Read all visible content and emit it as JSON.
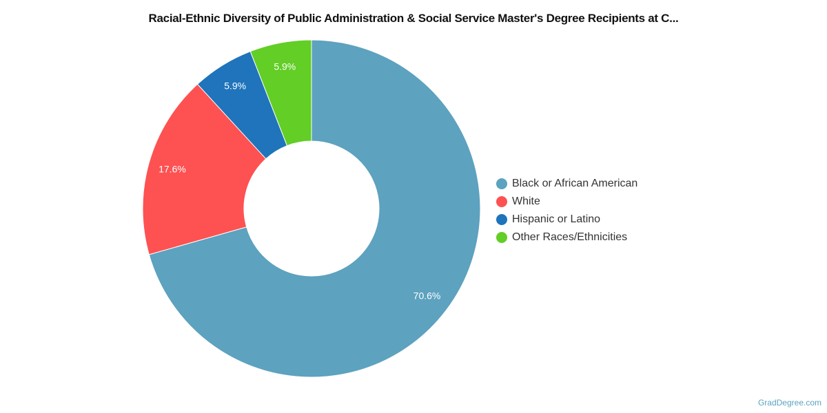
{
  "chart_data": {
    "type": "pie",
    "variant": "donut",
    "title": "Racial-Ethnic Diversity of Public Administration & Social Service Master's Degree Recipients at C...",
    "legend_position": "right",
    "slices": [
      {
        "name": "Black or African American",
        "value": 70.6,
        "label": "70.6%",
        "color": "#5da2bf"
      },
      {
        "name": "White",
        "value": 17.6,
        "label": "17.6%",
        "color": "#fe5151"
      },
      {
        "name": "Hispanic or Latino",
        "value": 5.9,
        "label": "5.9%",
        "color": "#1f74bb"
      },
      {
        "name": "Other Races/Ethnicities",
        "value": 5.9,
        "label": "5.9%",
        "color": "#62ce26"
      }
    ]
  },
  "credit": "GradDegree.com"
}
